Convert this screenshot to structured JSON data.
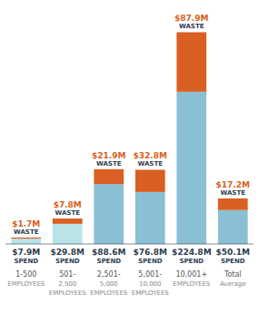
{
  "chart_data": {
    "type": "bar",
    "stacked": true,
    "orientation": "vertical",
    "categories": [
      "1-500\nEMPLOYEES",
      "501-\n2,500\nEMPLOYEES",
      "2,501-\n5,000\nEMPLOYEES",
      "5,001-\n10,000\nEMPLOYEES",
      "10,001+\nEMPLOYEES",
      "Total\nAverage"
    ],
    "series": [
      {
        "name": "SPEND",
        "colors": [
          "#b8e4e8",
          "#b8e4e8",
          "#8bbfd4",
          "#8bbfd4",
          "#8bbfd4",
          "#8bbfd4"
        ],
        "values": [
          7.9,
          29.8,
          88.6,
          76.8,
          224.8,
          50.1
        ],
        "value_labels": [
          "$7.9M",
          "$29.8M",
          "$88.6M",
          "$76.8M",
          "$224.8M",
          "$50.1M"
        ]
      },
      {
        "name": "WASTE",
        "color": "#d95f22",
        "values": [
          1.7,
          7.8,
          21.9,
          32.8,
          87.9,
          17.2
        ],
        "value_labels": [
          "$1.7M",
          "$7.8M",
          "$21.9M",
          "$32.8M",
          "$87.9M",
          "$17.2M"
        ]
      }
    ],
    "ylim": [
      0,
      320
    ],
    "data_labels": true,
    "tick_labels": false,
    "grid": false
  }
}
